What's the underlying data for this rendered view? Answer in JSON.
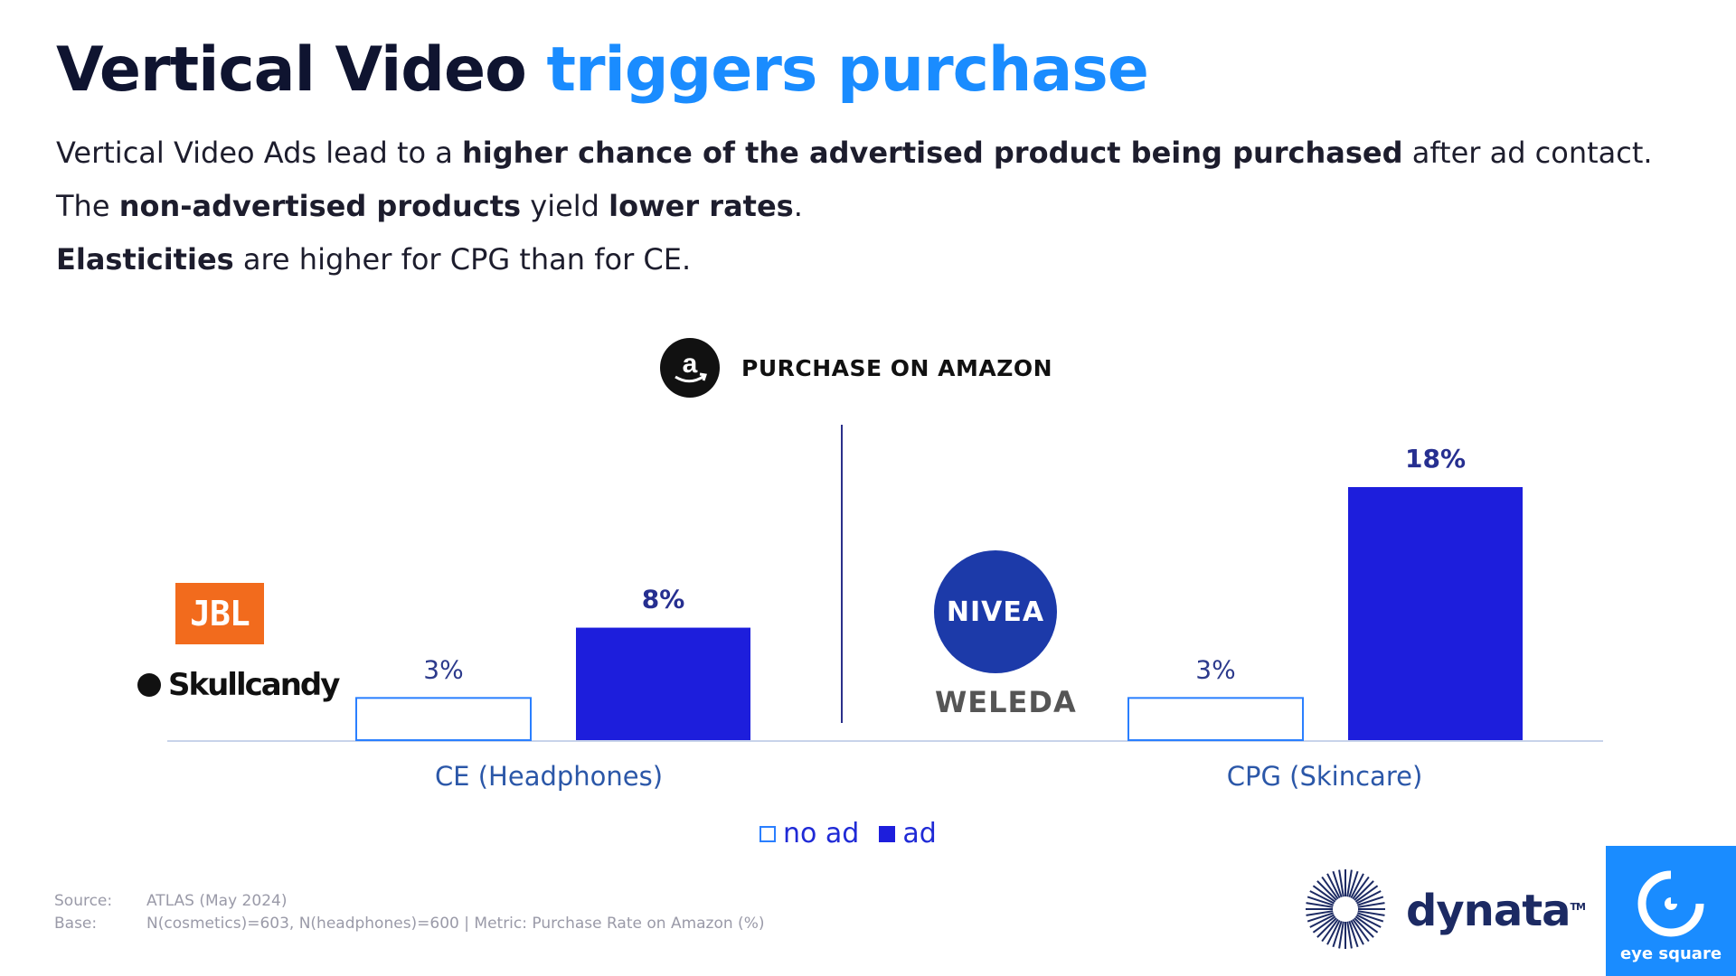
{
  "header": {
    "title_main": "Vertical Video",
    "title_accent": "triggers purchase"
  },
  "body": {
    "l1_a": "Vertical Video Ads lead to a ",
    "l1_b": "higher chance of the advertised product being purchased",
    "l1_c": " after ad contact.",
    "l2_a": "The ",
    "l2_b": "non-advertised products",
    "l2_c": " yield ",
    "l2_d": "lower rates",
    "l2_e": ".",
    "l3_a": "Elasticities",
    "l3_b": " are higher for CPG than for CE."
  },
  "chart_header": {
    "amazon_glyph": "a",
    "title": "PURCHASE ON AMAZON"
  },
  "brands": {
    "jbl": "JBL",
    "skullcandy": "Skullcandy",
    "nivea": "NIVEA",
    "weleda": "WELEDA"
  },
  "chart_data": {
    "type": "bar",
    "title": "PURCHASE ON AMAZON",
    "categories": [
      "CE (Headphones)",
      "CPG (Skincare)"
    ],
    "series": [
      {
        "name": "no ad",
        "values": [
          3,
          3
        ],
        "labels": [
          "3%",
          "3%"
        ]
      },
      {
        "name": "ad",
        "values": [
          8,
          18
        ],
        "labels": [
          "8%",
          "18%"
        ]
      }
    ],
    "ylim": [
      0,
      18
    ],
    "legend": [
      "no ad",
      "ad"
    ],
    "legend_position": "bottom",
    "colors": {
      "no_ad_fill": "#ffffff",
      "no_ad_stroke": "#2a7fff",
      "ad_fill": "#1d1edc",
      "axis": "#c8d3ea",
      "label_no_ad": "#2c3a8c",
      "label_ad": "#262f90",
      "category": "#2b57a8"
    }
  },
  "footer": {
    "source_label": "Source:",
    "source_value": "ATLAS (May 2024)",
    "base_label": "Base:",
    "base_value": "N(cosmetics)=603, N(headphones)=600 | Metric: Purchase Rate on Amazon (%)",
    "dynata": "dynata",
    "dynata_tm": "TM",
    "eye_square": "eye square"
  }
}
